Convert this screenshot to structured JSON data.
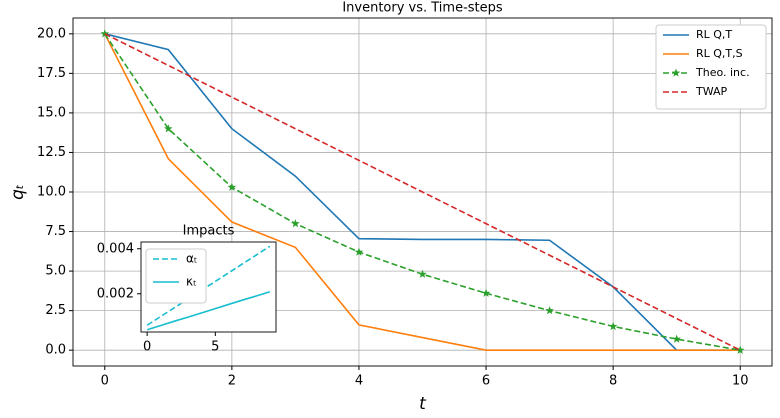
{
  "chart_data": [
    {
      "type": "line",
      "title": "Inventory vs. Time-steps",
      "x_label": "t",
      "y_label": "qₜ",
      "x": [
        0,
        1,
        2,
        3,
        4,
        5,
        6,
        7,
        8,
        9,
        10
      ],
      "series": [
        {
          "name": "RL Q,T",
          "color": "#1f77b4",
          "linestyle": "solid",
          "values": [
            20,
            19,
            14,
            11,
            7.05,
            7.0,
            7.0,
            6.95,
            4.0,
            0,
            0
          ]
        },
        {
          "name": "RL Q,T,S",
          "color": "#ff7f0e",
          "linestyle": "solid",
          "values": [
            20,
            12.1,
            8.1,
            6.5,
            1.6,
            0.8,
            0.0,
            0,
            0,
            0,
            0
          ]
        },
        {
          "name": "Theo. inc.",
          "color": "#2ca02c",
          "linestyle": "dashed",
          "marker": "*",
          "values": [
            20,
            14.0,
            10.3,
            8.0,
            6.2,
            4.8,
            3.6,
            2.5,
            1.5,
            0.7,
            0
          ]
        },
        {
          "name": "TWAP",
          "color": "#d62728",
          "linestyle": "dashed",
          "values": [
            20,
            18,
            16,
            14,
            12,
            10,
            8,
            6,
            4,
            2,
            0
          ]
        }
      ],
      "xlim": [
        -0.5,
        10.5
      ],
      "xticks": [
        0,
        2,
        4,
        6,
        8,
        10
      ],
      "ylim": [
        -1,
        21
      ],
      "yticks": [
        {
          "value": 0,
          "label": "0.0"
        },
        {
          "value": 2.5,
          "label": "2.5"
        },
        {
          "value": 5,
          "label": "5.0"
        },
        {
          "value": 7.5,
          "label": "7.5"
        },
        {
          "value": 10,
          "label": "10.0"
        },
        {
          "value": 12.5,
          "label": "12.5"
        },
        {
          "value": 15,
          "label": "15.0"
        },
        {
          "value": 17.5,
          "label": "17.5"
        },
        {
          "value": 20,
          "label": "20.0"
        }
      ],
      "grid": true,
      "legend": "upper right"
    },
    {
      "type": "line",
      "title": "Impacts",
      "x": [
        0,
        1,
        2,
        3,
        4,
        5,
        6,
        7,
        8,
        9
      ],
      "series": [
        {
          "name": "αₜ",
          "color": "#17becf",
          "linestyle": "dashed",
          "values": [
            0.0006,
            0.00099,
            0.00138,
            0.00177,
            0.00216,
            0.00255,
            0.00294,
            0.00333,
            0.00372,
            0.00411
          ]
        },
        {
          "name": "κₜ",
          "color": "#17becf",
          "linestyle": "solid",
          "values": [
            0.0004,
            0.00059,
            0.00078,
            0.00096,
            0.00115,
            0.00134,
            0.00153,
            0.00172,
            0.0019,
            0.00209
          ]
        }
      ],
      "xlim": [
        -0.45,
        9.45
      ],
      "xticks": [
        0,
        5
      ],
      "ylim": [
        0.0003,
        0.0043
      ],
      "yticks": [
        0.002,
        0.004
      ],
      "grid": false,
      "legend": "upper left"
    }
  ]
}
